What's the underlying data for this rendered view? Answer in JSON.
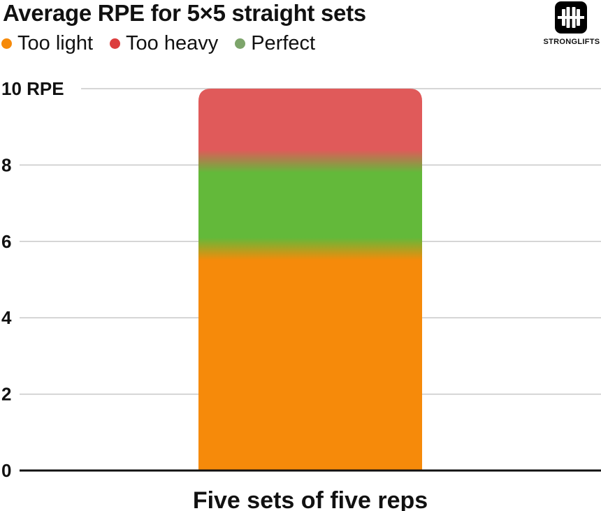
{
  "chart_data": {
    "type": "bar",
    "title": "Average RPE for 5×5 straight sets",
    "categories": [
      "Five sets of five reps"
    ],
    "values": [
      10
    ],
    "ylim": [
      0,
      10
    ],
    "yticks": [
      {
        "value": 0,
        "label": "0"
      },
      {
        "value": 2,
        "label": "2"
      },
      {
        "value": 4,
        "label": "4"
      },
      {
        "value": 6,
        "label": "6"
      },
      {
        "value": 8,
        "label": "8"
      },
      {
        "value": 10,
        "label": "10 RPE"
      }
    ],
    "grid": true,
    "legend": {
      "placement": "top-left",
      "entries": [
        {
          "name": "Too light",
          "color": "#f68a0a"
        },
        {
          "name": "Too heavy",
          "color": "#dc3e3e"
        },
        {
          "name": "Perfect",
          "color": "#7da56b"
        }
      ]
    },
    "zones": [
      {
        "name": "Too light",
        "from": 0,
        "to": 5.5,
        "color": "#f68a0a"
      },
      {
        "name": "Perfect",
        "from": 6.1,
        "to": 7.8,
        "color": "#63b93a"
      },
      {
        "name": "Too heavy",
        "from": 8.4,
        "to": 10,
        "color": "#e05a5a"
      }
    ]
  },
  "brand": {
    "name": "STRONGLIFTS",
    "icon": "barbell-icon"
  }
}
